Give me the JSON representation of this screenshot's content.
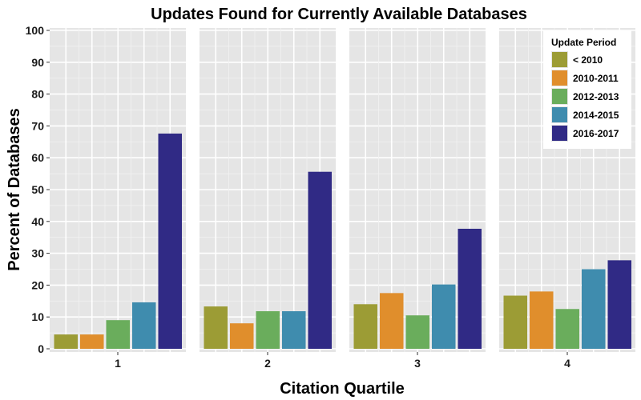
{
  "chart_data": {
    "type": "bar",
    "title": "Updates Found for Currently Available Databases",
    "xlabel": "Citation Quartile",
    "ylabel": "Percent of Databases",
    "ylim": [
      0,
      100
    ],
    "yticks": [
      "0",
      "10",
      "20",
      "30",
      "40",
      "50",
      "60",
      "70",
      "80",
      "90",
      "100"
    ],
    "facets": [
      "1",
      "2",
      "3",
      "4"
    ],
    "legend": {
      "title": "Update Period",
      "position": "top-right"
    },
    "grid": true,
    "series": [
      {
        "name": "< 2010",
        "color": "#9c9c35",
        "values": [
          4.5,
          13.3,
          14.0,
          16.7
        ]
      },
      {
        "name": "2010-2011",
        "color": "#e08e2c",
        "values": [
          4.5,
          8.0,
          17.5,
          18.0
        ]
      },
      {
        "name": "2012-2013",
        "color": "#6aad5c",
        "values": [
          9.0,
          11.8,
          10.5,
          12.5
        ]
      },
      {
        "name": "2014-2015",
        "color": "#3f8cae",
        "values": [
          14.6,
          11.8,
          20.2,
          25.0
        ]
      },
      {
        "name": "2016-2017",
        "color": "#302a85",
        "values": [
          67.6,
          55.6,
          37.7,
          27.8
        ]
      }
    ]
  }
}
